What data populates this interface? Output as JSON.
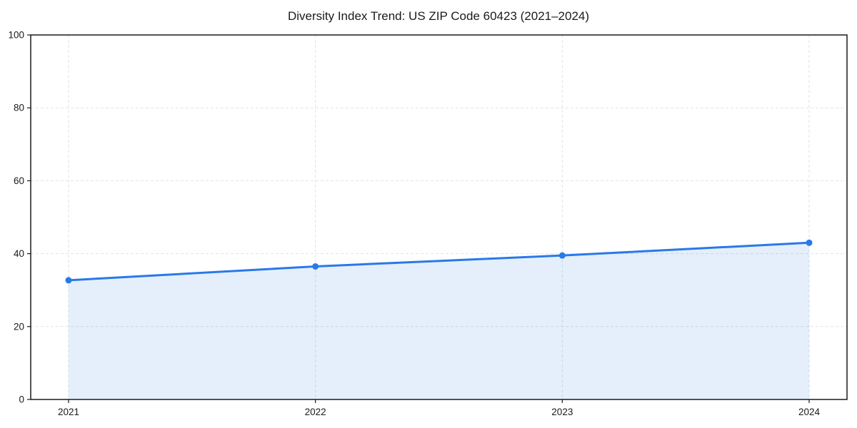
{
  "chart_data": {
    "type": "line",
    "title": "Diversity Index Trend: US ZIP Code 60423 (2021–2024)",
    "x": [
      "2021",
      "2022",
      "2023",
      "2024"
    ],
    "series": [
      {
        "name": "Diversity Index",
        "values": [
          32.7,
          36.5,
          39.5,
          43.0
        ]
      }
    ],
    "xlabel": "",
    "ylabel": "",
    "ylim": [
      0,
      100
    ],
    "yticks": [
      0,
      20,
      40,
      60,
      80,
      100
    ],
    "grid": "dashed-both-axes",
    "legend_position": "none",
    "area_fill_under_line": true,
    "markers_on_points": true,
    "colors": {
      "line": "#2979e8",
      "marker": "#2979e8",
      "area": "#2979e8",
      "area_opacity": 0.12,
      "grid": "#e2e2e2",
      "axis": "#1a1a1a",
      "text": "#1a1a1a",
      "background": "#ffffff"
    }
  }
}
